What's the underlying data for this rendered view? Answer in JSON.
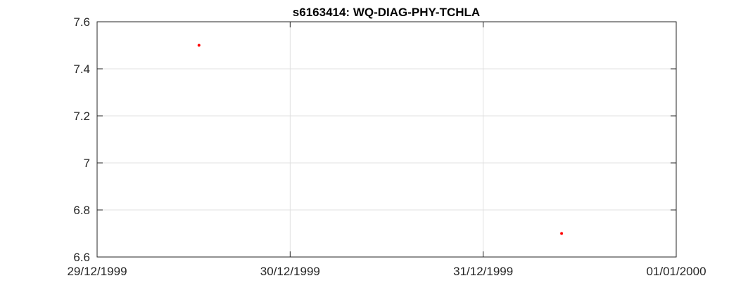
{
  "chart_data": {
    "type": "scatter",
    "title": "s6163414: WQ-DIAG-PHY-TCHLA",
    "xlabel": "",
    "ylabel": "",
    "x_ticks": [
      "29/12/1999",
      "30/12/1999",
      "31/12/1999",
      "01/01/2000"
    ],
    "y_ticks": [
      "6.6",
      "6.8",
      "7",
      "7.2",
      "7.4",
      "7.6"
    ],
    "xlim": [
      "1999-12-29 00:00",
      "2000-01-01 00:00"
    ],
    "ylim": [
      6.6,
      7.6
    ],
    "grid": true,
    "series": [
      {
        "color": "#ff0000",
        "marker": "dot",
        "points": [
          {
            "x": "1999-12-29 12:40",
            "y": 7.5
          },
          {
            "x": "1999-12-31 09:45",
            "y": 6.7
          }
        ]
      }
    ]
  }
}
